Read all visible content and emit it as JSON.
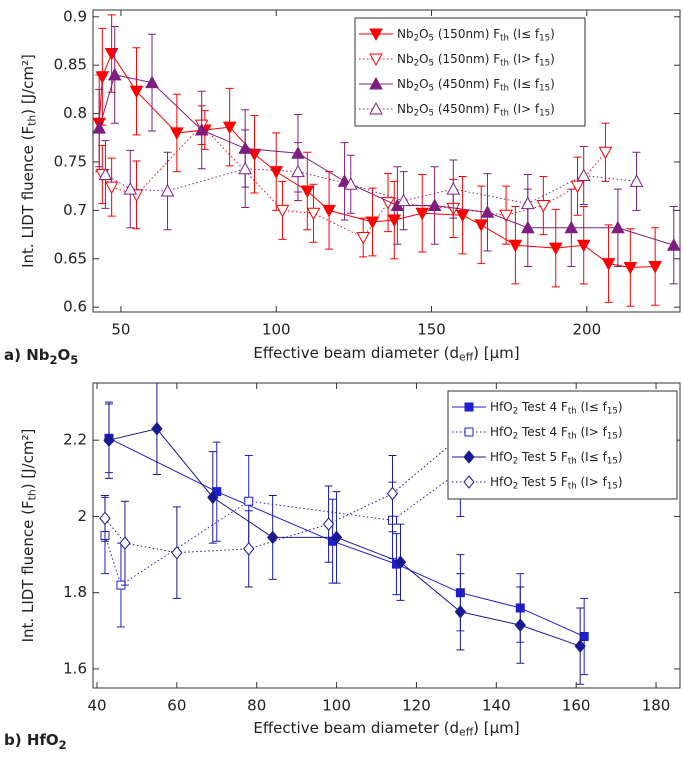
{
  "chart_data": [
    {
      "type": "line",
      "panel_label": [
        "a) Nb",
        "2",
        "O",
        "5"
      ],
      "x_label": [
        "Effective beam diameter (d",
        "eff",
        ") [µm]"
      ],
      "y_label": [
        "Int. LIDT fluence (F",
        "th",
        ") [J/cm²]"
      ],
      "xlim": [
        41,
        230
      ],
      "ylim": [
        0.595,
        0.907
      ],
      "xticks": [
        50,
        100,
        150,
        200
      ],
      "yticks": [
        0.6,
        0.65,
        0.7,
        0.75,
        0.8,
        0.85,
        0.9
      ],
      "legend": "north",
      "series": [
        {
          "name": [
            "Nb",
            "2",
            "O",
            "5",
            " (150nm) F",
            "th",
            " (I≤ f",
            "15",
            ")"
          ],
          "color": "#ff0000",
          "marker": "v",
          "filled": true,
          "linestyle": "solid",
          "x": [
            43,
            44,
            47,
            55,
            68,
            77,
            85,
            93,
            100,
            110,
            117,
            131,
            138,
            147,
            160,
            166,
            177,
            190,
            199,
            207,
            214,
            222
          ],
          "values": [
            0.79,
            0.838,
            0.862,
            0.823,
            0.78,
            0.783,
            0.786,
            0.758,
            0.74,
            0.72,
            0.7,
            0.688,
            0.69,
            0.697,
            0.695,
            0.685,
            0.664,
            0.661,
            0.664,
            0.645,
            0.641,
            0.642
          ],
          "errors": [
            0.05,
            0.05,
            0.04,
            0.045,
            0.04,
            0.02,
            0.04,
            0.04,
            0.04,
            0.04,
            0.04,
            0.035,
            0.04,
            0.04,
            0.04,
            0.04,
            0.04,
            0.04,
            0.04,
            0.04,
            0.04,
            0.04
          ]
        },
        {
          "name": [
            "Nb",
            "2",
            "O",
            "5",
            " (150nm) F",
            "th",
            " (I> f",
            "15",
            ")"
          ],
          "color": "#ff0000",
          "marker": "v",
          "filled": false,
          "linestyle": "dotted",
          "x": [
            44,
            47,
            55,
            76,
            102,
            112,
            128,
            136,
            157,
            174,
            186,
            197,
            206
          ],
          "values": [
            0.737,
            0.724,
            0.716,
            0.788,
            0.7,
            0.697,
            0.672,
            0.708,
            0.702,
            0.695,
            0.705,
            0.725,
            0.76
          ],
          "errors": [
            0.03,
            0.03,
            0.035,
            0.02,
            0.03,
            0.03,
            0.02,
            0.03,
            0.03,
            0.03,
            0.03,
            0.03,
            0.03
          ]
        },
        {
          "name": [
            "Nb",
            "2",
            "O",
            "5",
            " (450nm) F",
            "th",
            " (I≤ f",
            "15",
            ")"
          ],
          "color": "#7e1e80",
          "marker": "^",
          "filled": true,
          "linestyle": "solid",
          "x": [
            43,
            48,
            60,
            76,
            90,
            107,
            122,
            139,
            151,
            168,
            181,
            195,
            210,
            228
          ],
          "values": [
            0.785,
            0.84,
            0.832,
            0.783,
            0.764,
            0.759,
            0.73,
            0.705,
            0.705,
            0.698,
            0.682,
            0.682,
            0.682,
            0.664
          ],
          "errors": [
            0.04,
            0.05,
            0.05,
            0.04,
            0.04,
            0.04,
            0.04,
            0.04,
            0.04,
            0.04,
            0.04,
            0.04,
            0.04,
            0.04
          ]
        },
        {
          "name": [
            "Nb",
            "2",
            "O",
            "5",
            " (450nm) F",
            "th",
            " (I> f",
            "15",
            ")"
          ],
          "color": "#7e1e80",
          "marker": "^",
          "filled": false,
          "linestyle": "dotted",
          "x": [
            45,
            53,
            65,
            90,
            107,
            124,
            141,
            157,
            181,
            199,
            216
          ],
          "values": [
            0.737,
            0.722,
            0.72,
            0.743,
            0.74,
            0.727,
            0.71,
            0.722,
            0.707,
            0.736,
            0.73
          ],
          "errors": [
            0.035,
            0.04,
            0.04,
            0.04,
            0.03,
            0.03,
            0.03,
            0.03,
            0.03,
            0.03,
            0.03
          ]
        }
      ]
    },
    {
      "type": "line",
      "panel_label": [
        "b) HfO",
        "2"
      ],
      "x_label": [
        "Effective beam diameter (d",
        "eff",
        ") [µm]"
      ],
      "y_label": [
        "Int. LIDT fluence (F",
        "th",
        ") [J/cm²]"
      ],
      "xlim": [
        39,
        186
      ],
      "ylim": [
        1.55,
        2.35
      ],
      "xticks": [
        40,
        60,
        80,
        100,
        120,
        140,
        160,
        180
      ],
      "yticks": [
        1.6,
        1.8,
        2,
        2.2
      ],
      "legend": "northeast",
      "series": [
        {
          "name": [
            "HfO",
            "2",
            " Test 4 F",
            "th",
            " (I≤ f",
            "15",
            ")"
          ],
          "color": "#1f1fd0",
          "marker": "s",
          "filled": true,
          "linestyle": "solid",
          "x": [
            43,
            70,
            99,
            115,
            131,
            146,
            162
          ],
          "values": [
            2.205,
            2.065,
            1.935,
            1.875,
            1.8,
            1.76,
            1.685
          ],
          "errors": [
            0.09,
            0.13,
            0.11,
            0.08,
            0.1,
            0.09,
            0.1
          ]
        },
        {
          "name": [
            "HfO",
            "2",
            " Test 4 F",
            "th",
            " (I> f",
            "15",
            ")"
          ],
          "color": "#1f1fd0",
          "marker": "s",
          "filled": false,
          "linestyle": "dotted",
          "x": [
            42,
            46,
            78,
            114,
            131
          ],
          "values": [
            1.95,
            1.82,
            2.04,
            1.99,
            2.12
          ],
          "errors": [
            0.1,
            0.11,
            0.12,
            0.1,
            0.12
          ]
        },
        {
          "name": [
            "HfO",
            "2",
            " Test 5 F",
            "th",
            " (I≤ f",
            "15",
            ")"
          ],
          "color": "#1a1a90",
          "marker": "d",
          "filled": true,
          "linestyle": "solid",
          "x": [
            43,
            55,
            69,
            84,
            100,
            116,
            131,
            146,
            161
          ],
          "values": [
            2.2,
            2.23,
            2.05,
            1.945,
            1.945,
            1.88,
            1.75,
            1.715,
            1.66
          ],
          "errors": [
            0.1,
            0.12,
            0.12,
            0.11,
            0.12,
            0.1,
            0.1,
            0.1,
            0.1
          ]
        },
        {
          "name": [
            "HfO",
            "2",
            " Test 5 F",
            "th",
            " (I> f",
            "15",
            ")"
          ],
          "color": "#1a1a90",
          "marker": "d",
          "filled": false,
          "linestyle": "dotted",
          "x": [
            42,
            47,
            60,
            78,
            98,
            114,
            131
          ],
          "values": [
            1.995,
            1.93,
            1.905,
            1.915,
            1.98,
            2.06,
            2.21
          ],
          "errors": [
            0.06,
            0.11,
            0.12,
            0.1,
            0.1,
            0.1,
            0.08
          ]
        }
      ]
    }
  ]
}
